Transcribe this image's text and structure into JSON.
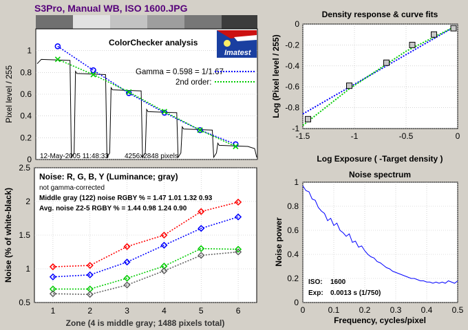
{
  "page_title": "S3Pro, Manual WB, ISO 1600.JPG",
  "colors": {
    "title": "#55007a",
    "red": "#ff0000",
    "green": "#00cc00",
    "blue": "#0000ff",
    "gray": "#606060",
    "background": "#d4d0c8"
  },
  "logo": {
    "text": "Imatest"
  },
  "chart_data": [
    {
      "type": "line",
      "title": "ColorChecker analysis",
      "ylabel": "Pixel level / 255",
      "xlabel": "",
      "ylim": [
        0,
        1.2
      ],
      "yticks": [
        "0",
        "0.2",
        "0.4",
        "0.6",
        "0.8",
        "1"
      ],
      "grid": true,
      "legend": {
        "position": "top-right",
        "entries": [
          "Gamma = 0.598 = 1/1.67",
          "2nd order:"
        ]
      },
      "footer_date": "12-May-2005 11:48:33",
      "footer_pixels": "4256x2848 pixels",
      "series": [
        {
          "name": "Gamma = 0.598 = 1/1.67",
          "marker": "circle",
          "color": "#0000ff",
          "x": [
            1,
            2,
            3,
            4,
            5,
            6
          ],
          "values": [
            1.04,
            0.82,
            0.61,
            0.43,
            0.27,
            0.14
          ]
        },
        {
          "name": "2nd order:",
          "marker": "x",
          "color": "#00cc00",
          "x": [
            1,
            2,
            3,
            4,
            5,
            6
          ],
          "values": [
            0.92,
            0.78,
            0.62,
            0.44,
            0.27,
            0.12
          ]
        }
      ],
      "measured_levels": [
        0.92,
        0.79,
        0.64,
        0.44,
        0.28,
        0.13
      ]
    },
    {
      "type": "scatter",
      "title": "Density response & curve fits",
      "xlabel": "Log Exposure  ( -Target density )",
      "ylabel": "Log (Pixel level / 255)",
      "xlim": [
        -1.5,
        0
      ],
      "ylim": [
        -1,
        0
      ],
      "xticks": [
        "-1.5",
        "-1",
        "-0.5",
        "0"
      ],
      "yticks": [
        "-1",
        "-0.8",
        "-0.6",
        "-0.4",
        "-0.2",
        "0"
      ],
      "grid": true,
      "x": [
        -0.04,
        -0.23,
        -0.44,
        -0.69,
        -1.05,
        -1.45
      ],
      "values": [
        -0.04,
        -0.1,
        -0.2,
        -0.37,
        -0.59,
        -0.91
      ],
      "fit_blue": [
        [
          -1.5,
          -0.86
        ],
        [
          -0.02,
          -0.02
        ]
      ],
      "fit_green": [
        [
          -1.5,
          -0.97
        ],
        [
          -1.05,
          -0.62
        ],
        [
          -0.5,
          -0.26
        ],
        [
          -0.02,
          -0.02
        ]
      ]
    },
    {
      "type": "line",
      "title": "Noise: R, G, B, Y (Luminance; gray)",
      "subtitle": "not gamma-corrected",
      "info_lines": [
        "Middle gray (122) noise RGBY % = 1.47  1.01  1.32  0.93",
        "Avg. noise Z2-5 RGBY % = 1.44  0.98  1.24  0.90"
      ],
      "xlabel": "Zone  (4 is middle gray;  1488 pixels total)",
      "ylabel": "Noise (% of white-black)",
      "xlim": [
        0.5,
        6.5
      ],
      "ylim": [
        0.5,
        2.5
      ],
      "categories": [
        "1",
        "2",
        "3",
        "4",
        "5",
        "6"
      ],
      "yticks": [
        "0.5",
        "1",
        "1.5",
        "2",
        "2.5"
      ],
      "grid": true,
      "series": [
        {
          "color": "#ff0000",
          "values": [
            1.03,
            1.05,
            1.33,
            1.5,
            1.85,
            1.99
          ]
        },
        {
          "color": "#0000ff",
          "values": [
            0.88,
            0.91,
            1.1,
            1.35,
            1.6,
            1.77
          ]
        },
        {
          "color": "#00cc00",
          "values": [
            0.7,
            0.7,
            0.86,
            1.04,
            1.3,
            1.29
          ]
        },
        {
          "color": "#606060",
          "values": [
            0.63,
            0.62,
            0.76,
            0.97,
            1.2,
            1.25
          ]
        }
      ]
    },
    {
      "type": "line",
      "title": "Noise spectrum",
      "xlabel": "Frequency, cycles/pixel",
      "ylabel": "Noise power",
      "xlim": [
        0,
        0.5
      ],
      "ylim": [
        0,
        1
      ],
      "xticks": [
        "0",
        "0.1",
        "0.2",
        "0.3",
        "0.4",
        "0.5"
      ],
      "yticks": [
        "0",
        "0.2",
        "0.4",
        "0.6",
        "0.8",
        "1"
      ],
      "grid": true,
      "annotations": {
        "iso_label": "ISO:",
        "iso_value": "1600",
        "exp_label": "Exp:",
        "exp_value": "0.0013 s  (1/750)"
      },
      "series": [
        {
          "color": "#0000ff",
          "x": [
            0.0,
            0.01,
            0.02,
            0.03,
            0.04,
            0.05,
            0.06,
            0.07,
            0.08,
            0.09,
            0.1,
            0.11,
            0.12,
            0.13,
            0.14,
            0.15,
            0.16,
            0.17,
            0.18,
            0.19,
            0.2,
            0.21,
            0.22,
            0.23,
            0.24,
            0.25,
            0.26,
            0.27,
            0.28,
            0.29,
            0.3,
            0.31,
            0.32,
            0.33,
            0.34,
            0.35,
            0.36,
            0.37,
            0.38,
            0.39,
            0.4,
            0.41,
            0.42,
            0.43,
            0.44,
            0.45,
            0.46,
            0.47,
            0.48,
            0.49,
            0.5
          ],
          "values": [
            0.97,
            0.93,
            0.92,
            0.86,
            0.85,
            0.79,
            0.76,
            0.74,
            0.68,
            0.7,
            0.64,
            0.66,
            0.6,
            0.58,
            0.55,
            0.57,
            0.5,
            0.51,
            0.46,
            0.47,
            0.43,
            0.4,
            0.38,
            0.37,
            0.34,
            0.33,
            0.31,
            0.29,
            0.28,
            0.26,
            0.25,
            0.24,
            0.23,
            0.22,
            0.21,
            0.2,
            0.2,
            0.19,
            0.18,
            0.18,
            0.17,
            0.17,
            0.16,
            0.17,
            0.16,
            0.17,
            0.16,
            0.18,
            0.17,
            0.16,
            0.18
          ]
        }
      ]
    }
  ]
}
